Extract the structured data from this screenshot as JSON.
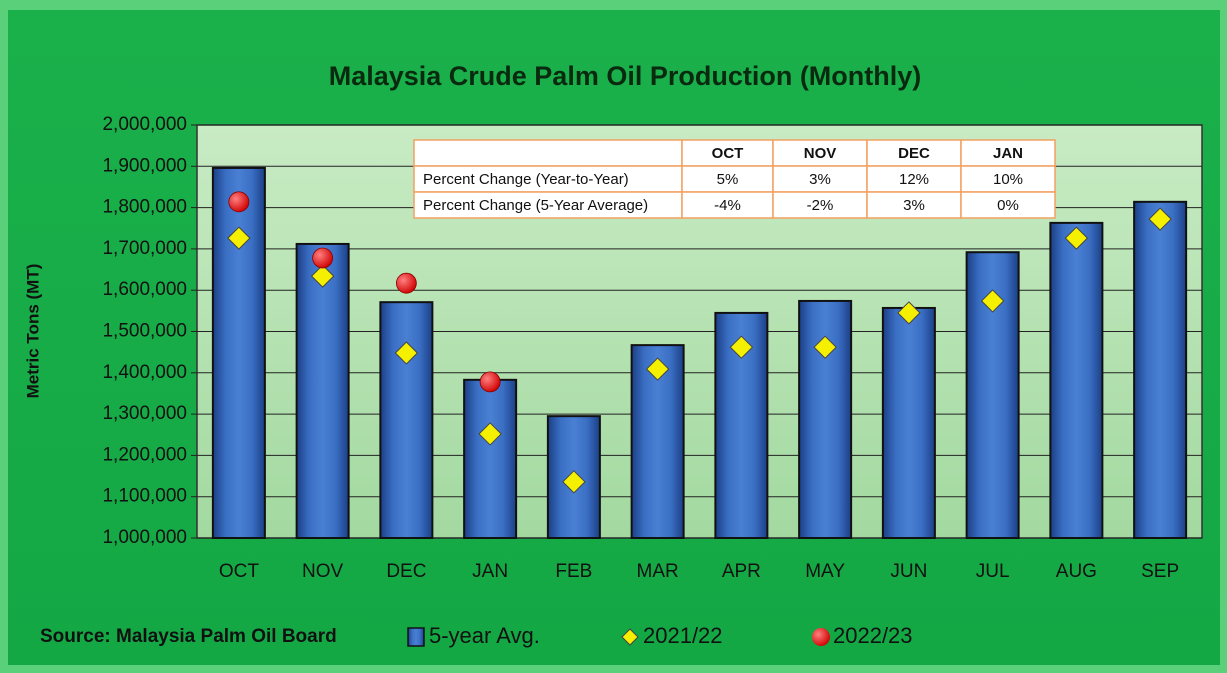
{
  "chart_data": {
    "type": "bar",
    "title": "Malaysia Crude Palm Oil Production (Monthly)",
    "y_label": "Metric Tons (MT)",
    "source": "Source: Malaysia Palm Oil Board",
    "categories": [
      "OCT",
      "NOV",
      "DEC",
      "JAN",
      "FEB",
      "MAR",
      "APR",
      "MAY",
      "JUN",
      "JUL",
      "AUG",
      "SEP"
    ],
    "series": [
      {
        "name": "5-year Avg.",
        "type": "bar",
        "color": "#2e5fb0",
        "values": [
          1896000,
          1712000,
          1571000,
          1383000,
          1295000,
          1467000,
          1545000,
          1574000,
          1557000,
          1692000,
          1763000,
          1814000
        ]
      },
      {
        "name": "2021/22",
        "type": "diamond",
        "color": "#f5f000",
        "values": [
          1726000,
          1634000,
          1448000,
          1252000,
          1136000,
          1409000,
          1462000,
          1462000,
          1545000,
          1574000,
          1726000,
          1772000
        ]
      },
      {
        "name": "2022/23",
        "type": "circle",
        "color": "#e01010",
        "values": [
          1814000,
          1678000,
          1617000,
          1378000,
          null,
          null,
          null,
          null,
          null,
          null,
          null,
          null
        ]
      }
    ],
    "ylim": [
      1000000,
      2000000
    ],
    "yticks": [
      {
        "value": 1000000,
        "label": "1,000,000"
      },
      {
        "value": 1100000,
        "label": "1,100,000"
      },
      {
        "value": 1200000,
        "label": "1,200,000"
      },
      {
        "value": 1300000,
        "label": "1,300,000"
      },
      {
        "value": 1400000,
        "label": "1,400,000"
      },
      {
        "value": 1500000,
        "label": "1,500,000"
      },
      {
        "value": 1600000,
        "label": "1,600,000"
      },
      {
        "value": 1700000,
        "label": "1,700,000"
      },
      {
        "value": 1800000,
        "label": "1,800,000"
      },
      {
        "value": 1900000,
        "label": "1,900,000"
      },
      {
        "value": 2000000,
        "label": "2,000,000"
      }
    ],
    "grid": true,
    "table": {
      "header": [
        "",
        "OCT",
        "NOV",
        "DEC",
        "JAN"
      ],
      "rows": [
        [
          "Percent Change (Year-to-Year)",
          "5%",
          "3%",
          "12%",
          "10%"
        ],
        [
          "Percent Change (5-Year Average)",
          "-4%",
          "-2%",
          "3%",
          "0%"
        ]
      ]
    }
  }
}
